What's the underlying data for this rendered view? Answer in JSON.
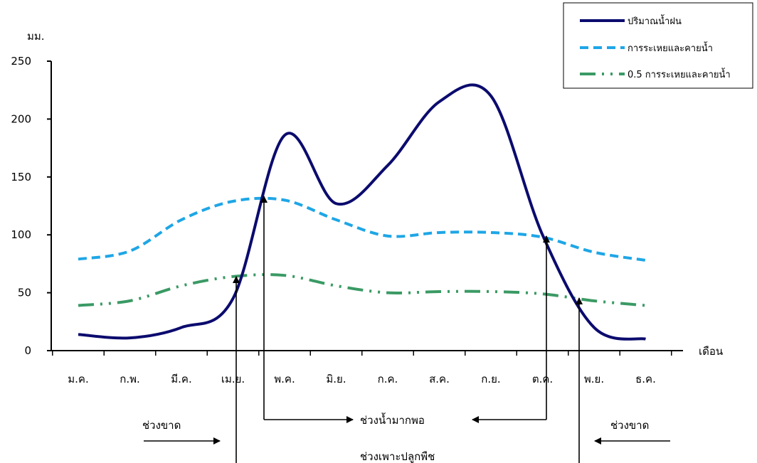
{
  "chart_data": {
    "type": "line",
    "ylabel": "มม.",
    "xlabel": "เดือน",
    "ylim": [
      0,
      250
    ],
    "yticks": [
      0,
      50,
      100,
      150,
      200,
      250
    ],
    "categories": [
      "ม.ค.",
      "ก.พ.",
      "มี.ค.",
      "เม.ย.",
      "พ.ค.",
      "มิ.ย.",
      "ก.ค.",
      "ส.ค.",
      "ก.ย.",
      "ต.ค.",
      "พ.ย.",
      "ธ.ค."
    ],
    "series": [
      {
        "name": "ปริมาณน้ำฝน",
        "color": "#0b0b6e",
        "style": "solid",
        "values": [
          14,
          11,
          20,
          45,
          186,
          127,
          160,
          215,
          220,
          100,
          20,
          10
        ]
      },
      {
        "name": "การระเหยและคายน้ำ",
        "color": "#1ea6e6",
        "style": "dashed",
        "values": [
          79,
          86,
          113,
          129,
          130,
          113,
          99,
          102,
          102,
          98,
          85,
          78
        ]
      },
      {
        "name": "0.5 การระเหยและคายน้ำ",
        "color": "#3a9a64",
        "style": "dash-dot-dot",
        "values": [
          39,
          43,
          56,
          64,
          65,
          56,
          50,
          51,
          51,
          49,
          43,
          39
        ]
      }
    ],
    "legend_position": "top-right",
    "annotations": {
      "deficit_left": "ช่วงขาด",
      "deficit_right": "ช่วงขาด",
      "surplus": "ช่วงน้ำมากพอ",
      "growing": "ช่วงเพาะปลูกพืช"
    }
  }
}
